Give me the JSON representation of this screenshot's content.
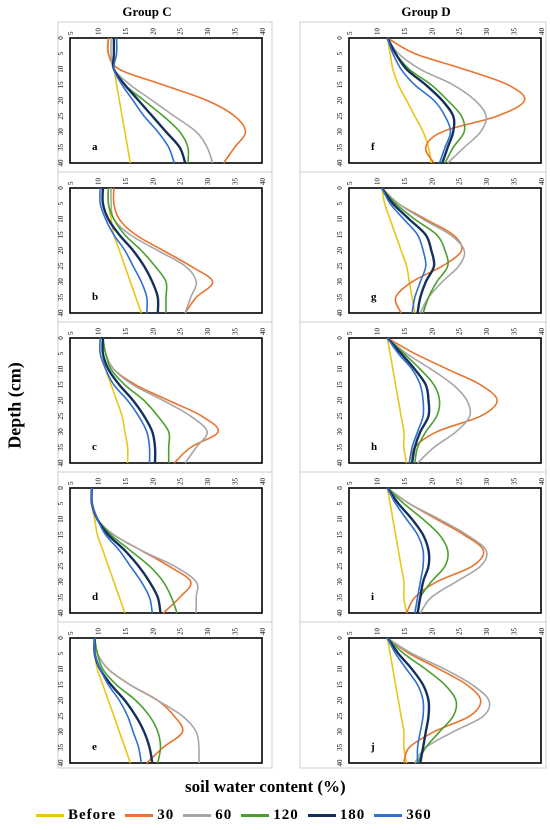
{
  "chart_data": {
    "type": "line",
    "group_titles": [
      "Group C",
      "Group D"
    ],
    "ylabel": "Depth (cm)",
    "xlabel": "soil water content (%)",
    "x_ticks": [
      5,
      10,
      15,
      20,
      25,
      30,
      35,
      40
    ],
    "depth_ticks": [
      0,
      5,
      10,
      15,
      20,
      25,
      30,
      35,
      40
    ],
    "xlim": [
      5,
      40
    ],
    "ylim": [
      0,
      40
    ],
    "legend_placement": "bottom",
    "series": [
      {
        "name": "Before",
        "color": "#e8c619"
      },
      {
        "name": "30",
        "color": "#e8742e"
      },
      {
        "name": "60",
        "color": "#a6a6a6"
      },
      {
        "name": "120",
        "color": "#4aa02c"
      },
      {
        "name": "180",
        "color": "#16305c"
      },
      {
        "name": "360",
        "color": "#2e6fd0"
      }
    ],
    "panels": [
      {
        "letter": "a",
        "depth": [
          0,
          5,
          10,
          15,
          20,
          25,
          30,
          35,
          40
        ],
        "values": [
          [
            12,
            12,
            13,
            13.5,
            14,
            14.5,
            15,
            15.5,
            16
          ],
          [
            12,
            12,
            14,
            22,
            30,
            35,
            37,
            35,
            33
          ],
          [
            12.5,
            12.5,
            13,
            16,
            20,
            24,
            28,
            30,
            31
          ],
          [
            13,
            13,
            13,
            15,
            18.5,
            22,
            25,
            26.5,
            26.5
          ],
          [
            13,
            13,
            13,
            15,
            17.5,
            20,
            22.5,
            25,
            26
          ],
          [
            13.5,
            13.5,
            13,
            14.5,
            16.5,
            18.5,
            21,
            23,
            24
          ]
        ]
      },
      {
        "letter": "b",
        "depth": [
          0,
          5,
          10,
          15,
          20,
          25,
          30,
          35,
          40
        ],
        "values": [
          [
            12,
            12,
            12.5,
            13,
            14,
            15,
            16,
            17,
            18
          ],
          [
            13,
            13,
            14,
            17,
            22,
            27,
            31,
            28,
            26
          ],
          [
            12.5,
            12.5,
            13,
            16,
            21,
            26,
            28,
            27,
            26
          ],
          [
            12,
            12,
            13,
            15,
            18,
            20.5,
            22.5,
            22.5,
            22.5
          ],
          [
            11,
            11,
            12,
            14,
            16.5,
            18.5,
            20,
            21,
            21
          ],
          [
            10.5,
            10.5,
            11.5,
            13,
            15,
            16.5,
            18,
            19,
            19
          ]
        ]
      },
      {
        "letter": "c",
        "depth": [
          0,
          5,
          10,
          15,
          20,
          25,
          30,
          35,
          40
        ],
        "values": [
          [
            11,
            11,
            11.5,
            12.5,
            13.5,
            14.5,
            15,
            15.5,
            15.5
          ],
          [
            11,
            11.5,
            13,
            17,
            23,
            29,
            32,
            27,
            24
          ],
          [
            11,
            11.5,
            13,
            16.5,
            22,
            27,
            30,
            28,
            26
          ],
          [
            11,
            11.5,
            12.5,
            15,
            18.5,
            21,
            23,
            23,
            23
          ],
          [
            11,
            11,
            12,
            14,
            16.5,
            18.5,
            20,
            20.5,
            20.5
          ],
          [
            10.5,
            10.5,
            11.5,
            13,
            15.5,
            17.5,
            19,
            19.5,
            19.5
          ]
        ]
      },
      {
        "letter": "d",
        "depth": [
          0,
          5,
          10,
          15,
          20,
          25,
          30,
          35,
          40
        ],
        "values": [
          [
            9,
            9,
            9.5,
            10,
            11,
            12,
            13,
            14,
            15
          ],
          [
            9,
            9,
            10,
            13,
            18,
            23,
            27,
            25,
            22
          ],
          [
            9,
            9,
            10,
            13,
            18,
            24,
            28,
            28,
            28
          ],
          [
            9,
            9,
            10,
            12.5,
            16,
            19.5,
            22,
            23.5,
            24.5
          ],
          [
            9,
            9,
            10,
            12,
            15,
            17.5,
            19.5,
            21,
            21.5
          ],
          [
            9,
            9,
            10,
            11.5,
            14,
            16,
            18,
            19.5,
            20
          ]
        ]
      },
      {
        "letter": "e",
        "depth": [
          0,
          5,
          10,
          15,
          20,
          25,
          30,
          35,
          40
        ],
        "values": [
          [
            9.5,
            9.5,
            10,
            11,
            12,
            13,
            14,
            15,
            16
          ],
          [
            9.5,
            10,
            12,
            16,
            21,
            24,
            25.5,
            22,
            19
          ],
          [
            9.5,
            10,
            12,
            16,
            21,
            25.5,
            28,
            28.5,
            28.5
          ],
          [
            9.5,
            10,
            11,
            13.5,
            17,
            19.5,
            21,
            21.5,
            21
          ],
          [
            9.5,
            9.5,
            10.5,
            12.5,
            15,
            17,
            18.5,
            19.5,
            20
          ],
          [
            9.5,
            9.5,
            10.5,
            12,
            14,
            15.5,
            16.5,
            17.5,
            18
          ]
        ]
      },
      {
        "letter": "f",
        "depth": [
          0,
          5,
          10,
          15,
          20,
          25,
          30,
          35,
          40
        ],
        "values": [
          [
            12,
            12.5,
            13,
            14,
            15.5,
            17,
            18.5,
            19.5,
            20
          ],
          [
            12,
            17,
            26,
            34,
            37,
            32,
            22,
            19,
            20.5
          ],
          [
            12,
            14,
            18,
            24,
            28,
            30,
            29,
            26,
            23
          ],
          [
            12,
            13.5,
            16,
            20,
            23,
            25.5,
            26,
            24,
            22.5
          ],
          [
            12,
            13.5,
            15.5,
            19,
            22,
            24,
            24,
            23,
            22
          ],
          [
            12,
            13,
            14.5,
            17,
            20.5,
            22.5,
            23.5,
            22.5,
            21.5
          ]
        ]
      },
      {
        "letter": "g",
        "depth": [
          0,
          5,
          10,
          15,
          20,
          25,
          30,
          35,
          40
        ],
        "values": [
          [
            11,
            11.5,
            12.5,
            13.5,
            14.5,
            15.5,
            16,
            16.5,
            17
          ],
          [
            11,
            14,
            19,
            24,
            25.5,
            22,
            16.5,
            13.5,
            14.5
          ],
          [
            11,
            14,
            18.5,
            23.5,
            26,
            25,
            22,
            19.5,
            18
          ],
          [
            11,
            13.5,
            17,
            21,
            22.5,
            23,
            21,
            19.5,
            18.5
          ],
          [
            11,
            13,
            16,
            19,
            20,
            20.5,
            19,
            18,
            17.5
          ],
          [
            11,
            12.5,
            15,
            17.5,
            18.5,
            19,
            18,
            17,
            16.5
          ]
        ]
      },
      {
        "letter": "h",
        "depth": [
          0,
          5,
          10,
          15,
          20,
          25,
          30,
          35,
          40
        ],
        "values": [
          [
            12,
            12.5,
            13,
            13.5,
            14,
            14.5,
            15,
            15,
            15.5
          ],
          [
            12,
            17,
            23,
            29,
            32,
            29,
            21,
            17,
            16.5
          ],
          [
            12,
            15.5,
            20,
            24,
            26.5,
            27,
            24.5,
            20.5,
            17.5
          ],
          [
            12,
            15,
            18,
            20.5,
            21.5,
            21,
            19,
            17.5,
            17
          ],
          [
            12,
            14.5,
            17,
            19,
            19.5,
            19.5,
            18,
            17,
            16.5
          ],
          [
            12,
            14,
            16.5,
            18,
            18.5,
            18.5,
            17.5,
            16.5,
            16
          ]
        ]
      },
      {
        "letter": "i",
        "depth": [
          0,
          5,
          10,
          15,
          20,
          25,
          30,
          35,
          40
        ],
        "values": [
          [
            12,
            12.5,
            13,
            13.5,
            14,
            14.5,
            15,
            15,
            15.5
          ],
          [
            12,
            16,
            21,
            26,
            29.5,
            27.5,
            21,
            17,
            15.5
          ],
          [
            12,
            16,
            21.5,
            26.5,
            30,
            29,
            24.5,
            20,
            18
          ],
          [
            12,
            15,
            18.5,
            21.5,
            23,
            22.5,
            20,
            18,
            17.5
          ],
          [
            12,
            14,
            16.5,
            18.5,
            19.5,
            19.5,
            18.5,
            18,
            17.5
          ],
          [
            12,
            13.5,
            15.5,
            17.5,
            18.5,
            18.5,
            18,
            17.5,
            17
          ]
        ]
      },
      {
        "letter": "j",
        "depth": [
          0,
          5,
          10,
          15,
          20,
          25,
          30,
          35,
          40
        ],
        "values": [
          [
            12,
            12.5,
            13,
            13.5,
            14,
            14.5,
            15,
            15,
            15.5
          ],
          [
            12,
            16,
            21.5,
            26.5,
            29,
            27,
            20.5,
            16,
            15
          ],
          [
            12,
            16.5,
            22.5,
            27.5,
            30.5,
            29.5,
            24,
            19,
            17
          ],
          [
            12,
            15,
            19,
            22.5,
            24.5,
            24,
            21.5,
            19,
            17.5
          ],
          [
            12,
            14,
            16.5,
            18.5,
            19.5,
            19.5,
            19,
            18.5,
            18
          ],
          [
            12,
            13.5,
            15.5,
            17.5,
            18.5,
            18.5,
            18,
            17.5,
            17.5
          ]
        ]
      }
    ]
  }
}
